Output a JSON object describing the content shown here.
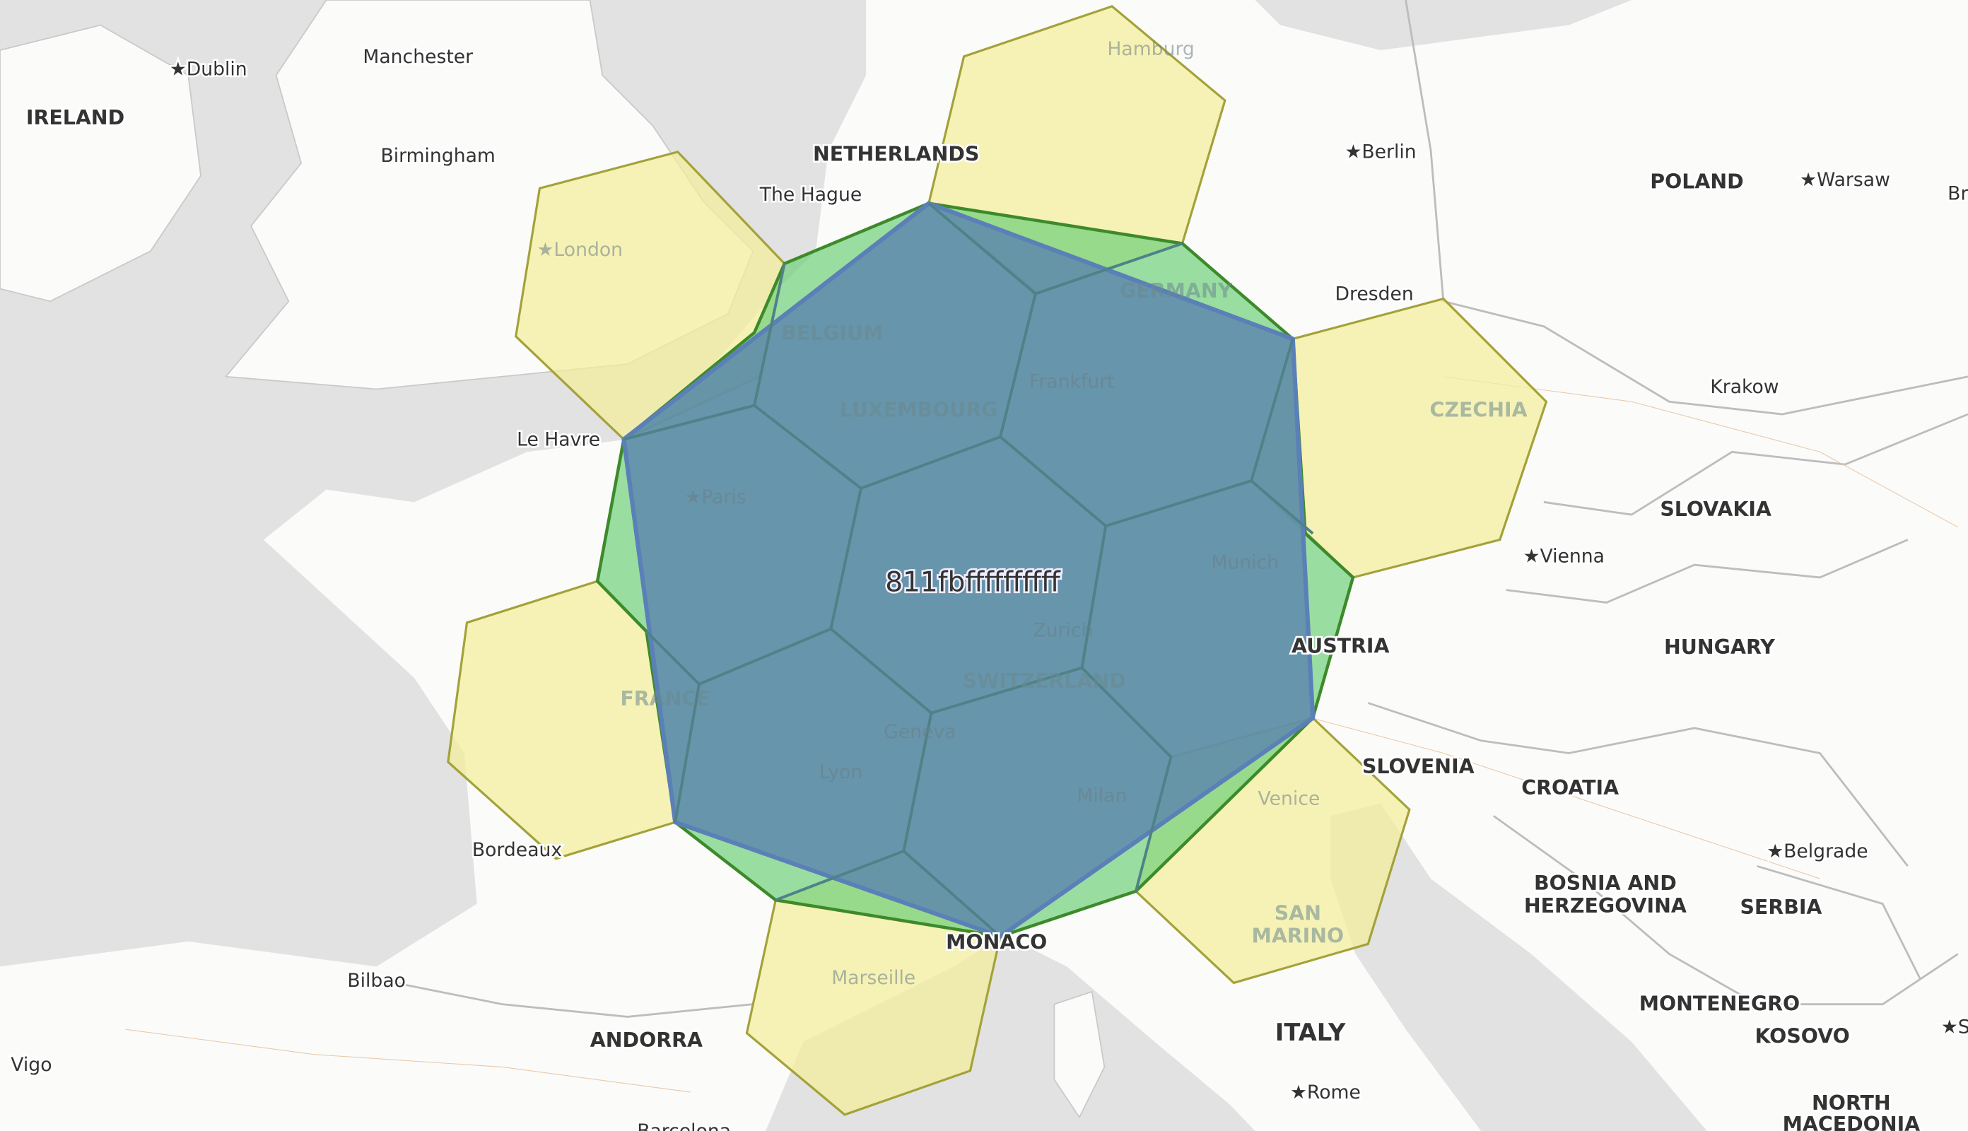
{
  "map": {
    "cell_id": "811fbffffffffff",
    "colors": {
      "center_cell": "#5e88ad",
      "parent_outline": "#6fd07a",
      "neighbor_cells": "#f4ef9a",
      "sea": "#e2e2e2",
      "land": "#fbfbfa"
    },
    "countries": {
      "ireland": "IRELAND",
      "netherlands": "NETHERLANDS",
      "poland": "POLAND",
      "belgium": "BELGIUM",
      "germany": "GERMANY",
      "luxembourg": "LUXEMBOURG",
      "czechia": "CZECHIA",
      "slovakia": "SLOVAKIA",
      "france": "FRANCE",
      "switzerland": "SWITZERLAND",
      "austria": "AUSTRIA",
      "hungary": "HUNGARY",
      "slovenia": "SLOVENIA",
      "croatia": "CROATIA",
      "bosnia_1": "BOSNIA AND",
      "bosnia_2": "HERZEGOVINA",
      "serbia": "SERBIA",
      "monaco": "MONACO",
      "san_marino_1": "SAN",
      "san_marino_2": "MARINO",
      "italy": "ITALY",
      "andorra": "ANDORRA",
      "montenegro": "MONTENEGRO",
      "kosovo": "KOSOVO",
      "north_macedonia_1": "NORTH",
      "north_macedonia_2": "MACEDONIA"
    },
    "cities": {
      "dublin": "★Dublin",
      "manchester": "Manchester",
      "birmingham": "Birmingham",
      "london": "★London",
      "the_hague": "The Hague",
      "hamburg": "Hamburg",
      "berlin": "★Berlin",
      "warsaw": "★Warsaw",
      "br": "Br",
      "dresden": "Dresden",
      "frankfurt": "Frankfurt",
      "krakow": "Krakow",
      "le_havre": "Le Havre",
      "paris": "★Paris",
      "vienna": "★Vienna",
      "munich": "Munich",
      "zurich": "Zurich",
      "geneva": "Geneva",
      "lyon": "Lyon",
      "milan": "Milan",
      "venice": "Venice",
      "bordeaux": "Bordeaux",
      "belgrade": "★Belgrade",
      "bilbao": "Bilbao",
      "marseille": "Marseille",
      "rome": "★Rome",
      "vigo": "Vigo",
      "barcelona": "Barcelona",
      "sofia_partial": "★S"
    }
  }
}
